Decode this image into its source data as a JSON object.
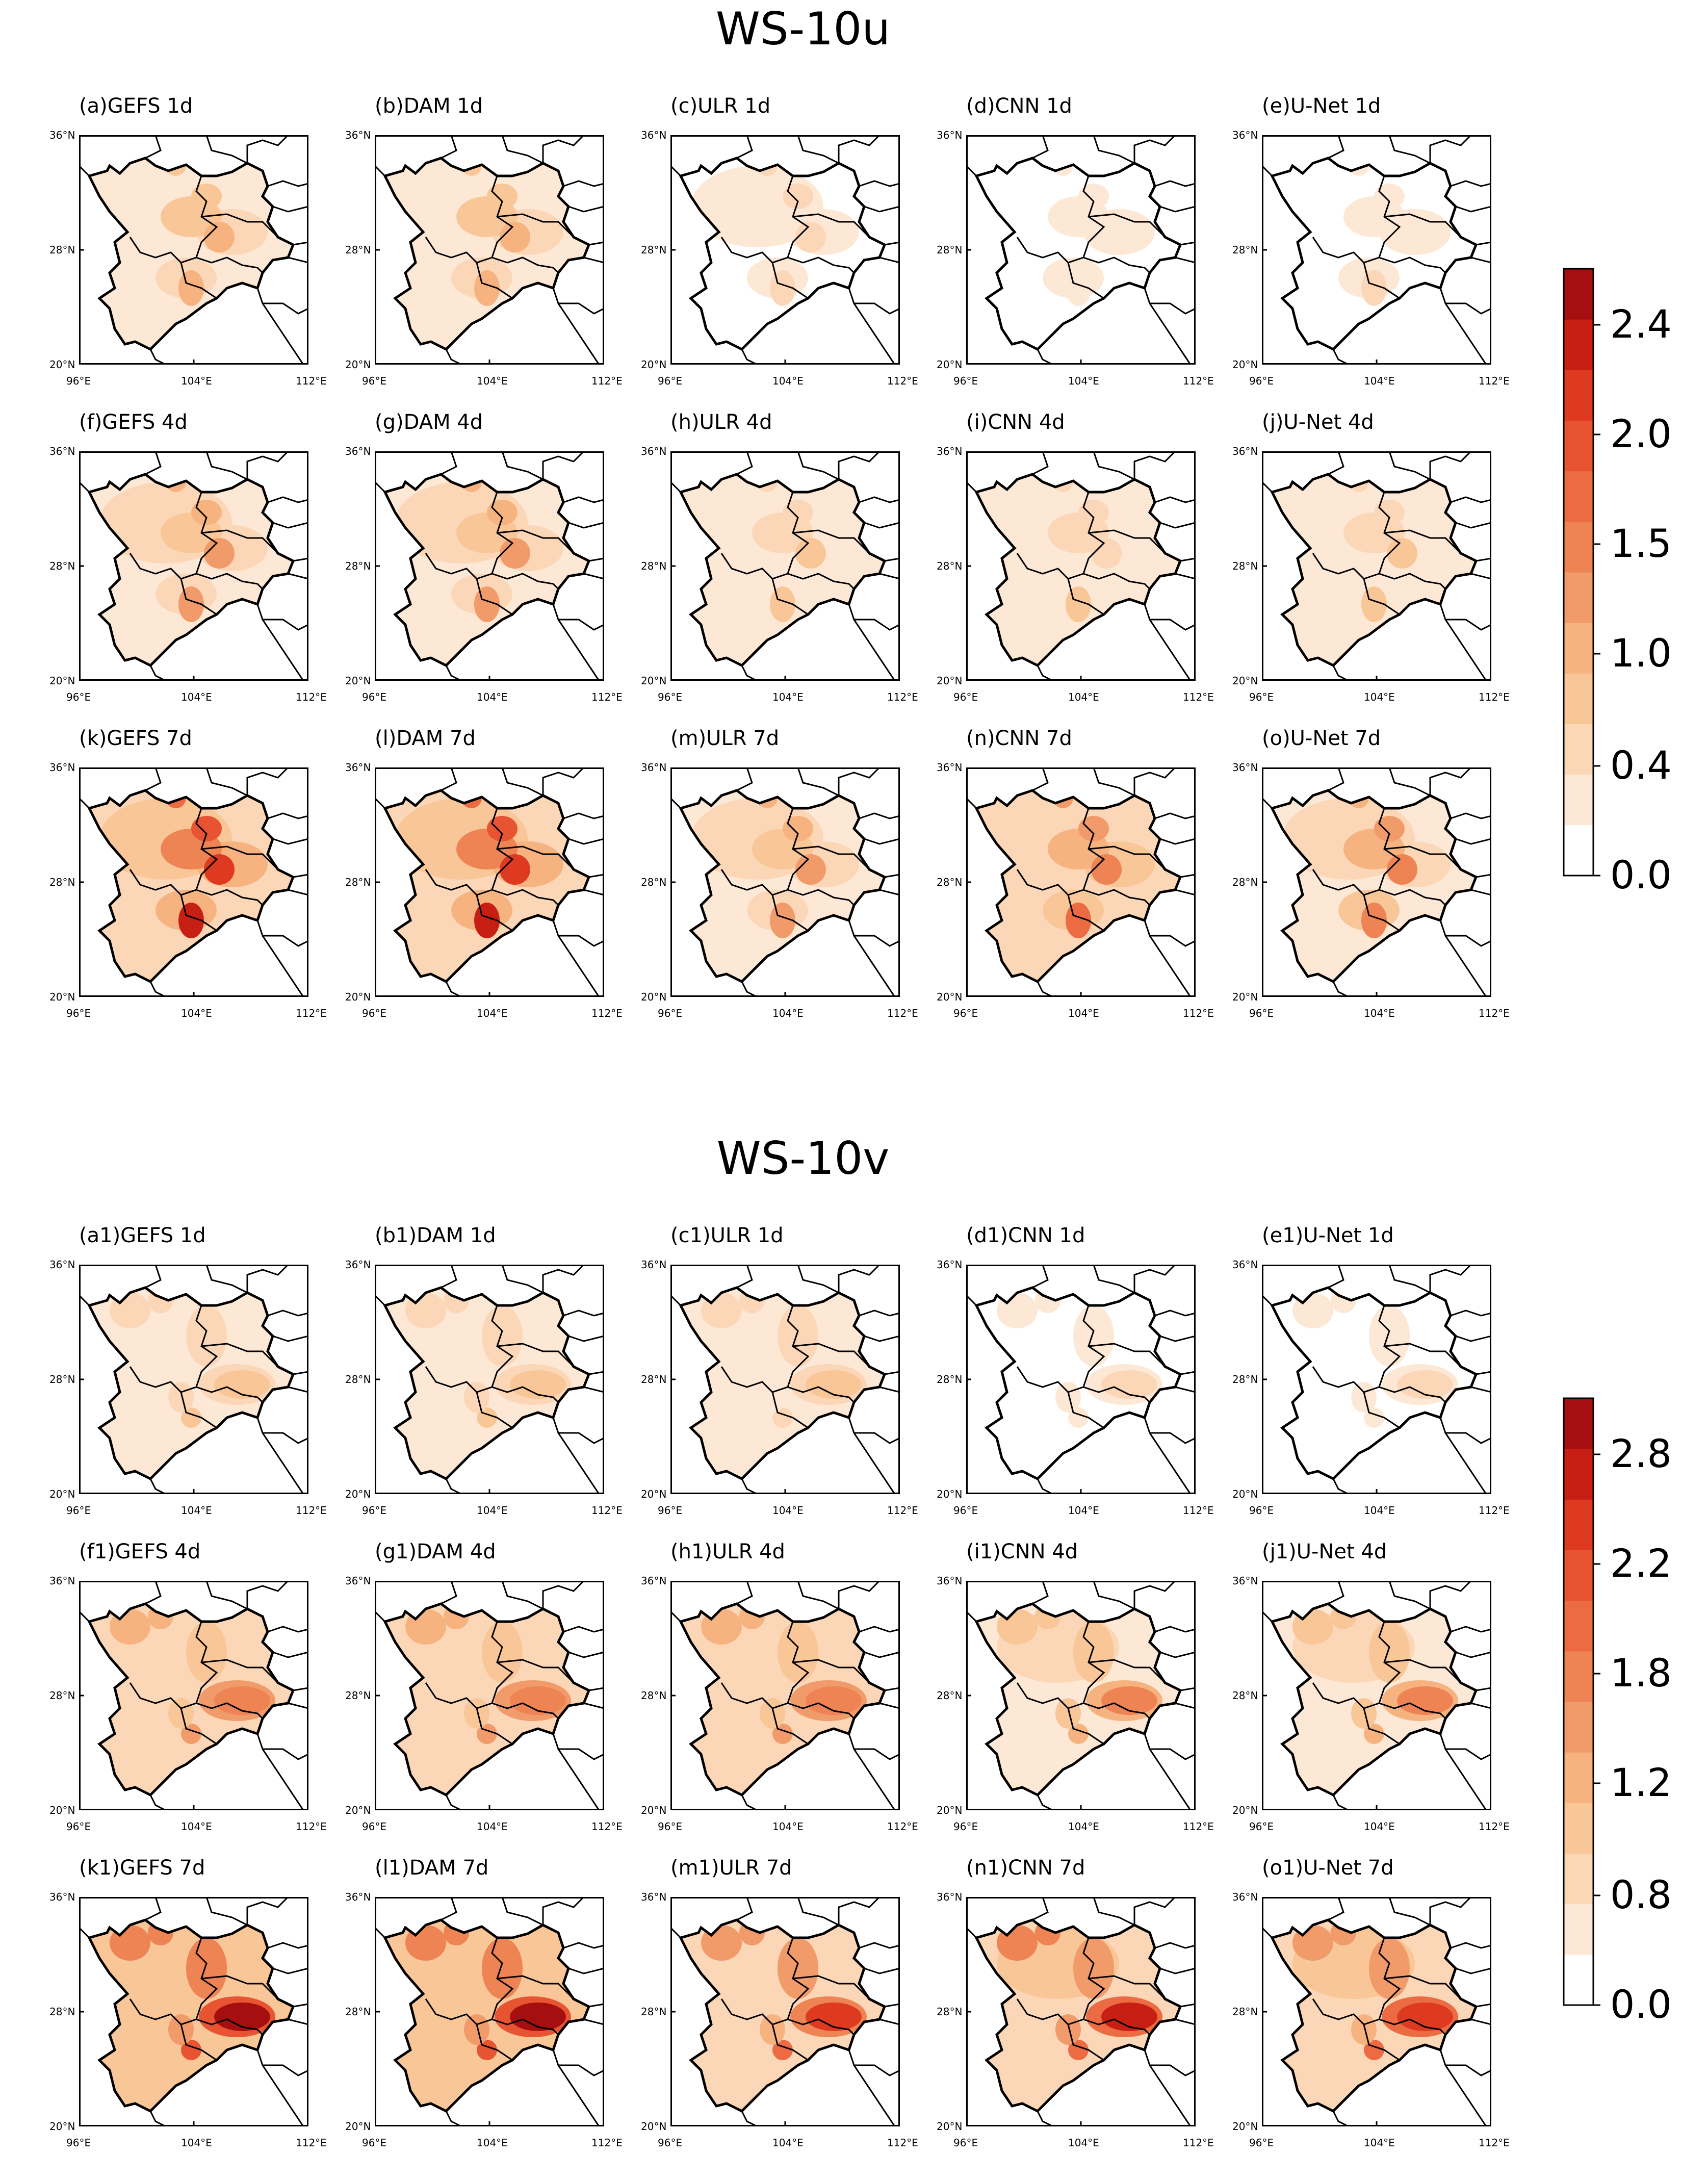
{
  "sections": [
    {
      "title": "WS-10u",
      "panels": [
        [
          "(a)GEFS 1d",
          "(b)DAM 1d",
          "(c)ULR 1d",
          "(d)CNN 1d",
          "(e)U-Net 1d"
        ],
        [
          "(f)GEFS 4d",
          "(g)DAM 4d",
          "(h)ULR 4d",
          "(i)CNN 4d",
          "(j)U-Net 4d"
        ],
        [
          "(k)GEFS 7d",
          "(l)DAM 7d",
          "(m)ULR 7d",
          "(n)CNN 7d",
          "(o)U-Net 7d"
        ]
      ],
      "intensity": [
        [
          0.35,
          0.35,
          0.18,
          0.12,
          0.13
        ],
        [
          0.45,
          0.45,
          0.25,
          0.22,
          0.25
        ],
        [
          0.8,
          0.8,
          0.45,
          0.55,
          0.5
        ]
      ],
      "colorbar": {
        "ticks": [
          "2.4",
          "2.0",
          "1.5",
          "1.0",
          "0.4",
          "0.0"
        ]
      }
    },
    {
      "title": "WS-10v",
      "panels": [
        [
          "(a1)GEFS 1d",
          "(b1)DAM 1d",
          "(c1)ULR 1d",
          "(d1)CNN 1d",
          "(e1)U-Net 1d"
        ],
        [
          "(f1)GEFS 4d",
          "(g1)DAM 4d",
          "(h1)ULR 4d",
          "(i1)CNN 4d",
          "(j1)U-Net 4d"
        ],
        [
          "(k1)GEFS 7d",
          "(l1)DAM 7d",
          "(m1)ULR 7d",
          "(n1)CNN 7d",
          "(o1)U-Net 7d"
        ]
      ],
      "intensity": [
        [
          0.3,
          0.3,
          0.25,
          0.15,
          0.14
        ],
        [
          0.55,
          0.55,
          0.55,
          0.5,
          0.5
        ],
        [
          0.95,
          0.95,
          0.75,
          0.85,
          0.8
        ]
      ],
      "colorbar": {
        "ticks": [
          "2.8",
          "2.2",
          "1.8",
          "1.2",
          "0.8",
          "0.0"
        ]
      }
    }
  ],
  "axes": {
    "lat_ticks": [
      "36°N",
      "28°N",
      "20°N"
    ],
    "lon_ticks": [
      "96°E",
      "104°E",
      "112°E"
    ]
  },
  "colors": [
    "#ffffff",
    "#fde8d6",
    "#fbd7b8",
    "#f9c698",
    "#f6b37f",
    "#f19a6a",
    "#ee8354",
    "#ec6b43",
    "#e85432",
    "#de3a22",
    "#c81f15",
    "#a50f0f"
  ]
}
